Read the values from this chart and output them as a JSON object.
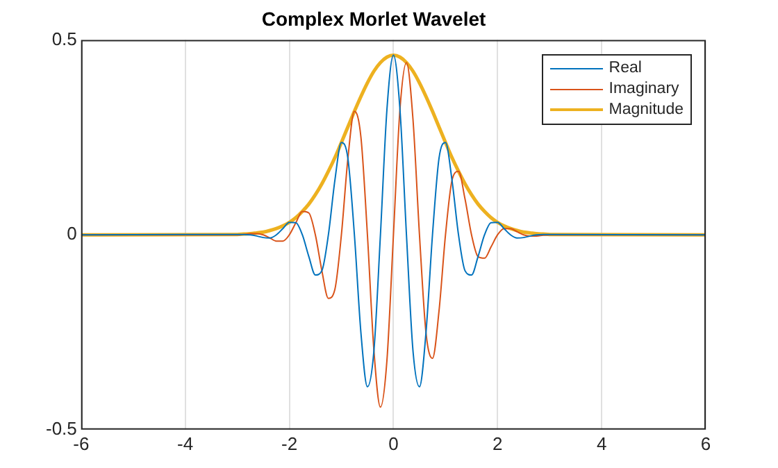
{
  "chart_data": {
    "type": "line",
    "title": "Complex Morlet Wavelet",
    "x": [
      -6,
      -3,
      -2.875,
      -2.75,
      -2.625,
      -2.5,
      -2.375,
      -2.25,
      -2.125,
      -2,
      -1.875,
      -1.75,
      -1.625,
      -1.5,
      -1.375,
      -1.25,
      -1.125,
      -1,
      -0.875,
      -0.75,
      -0.625,
      -0.5,
      -0.375,
      -0.25,
      -0.125,
      0,
      0.125,
      0.25,
      0.375,
      0.5,
      0.625,
      0.75,
      0.875,
      1,
      1.125,
      1.25,
      1.375,
      1.5,
      1.625,
      1.75,
      1.875,
      2,
      2.125,
      2.25,
      2.375,
      2.5,
      2.625,
      2.75,
      2.875,
      3,
      6
    ],
    "series": [
      {
        "name": "Real",
        "color": "#0072bd",
        "values": [
          0,
          0.001,
          0.001,
          0,
          -0.003,
          -0.007,
          -0.008,
          0,
          0.016,
          0.032,
          0.031,
          0,
          -0.056,
          -0.103,
          -0.092,
          0,
          0.14,
          0.237,
          0.196,
          0,
          -0.251,
          -0.39,
          -0.297,
          0,
          0.322,
          0.461,
          0.322,
          0,
          -0.297,
          -0.39,
          -0.251,
          0,
          0.196,
          0.237,
          0.14,
          0,
          -0.092,
          -0.103,
          -0.056,
          0,
          0.031,
          0.032,
          0.016,
          0,
          -0.008,
          -0.007,
          -0.003,
          0,
          0.001,
          0.001,
          0
        ]
      },
      {
        "name": "Imaginary",
        "color": "#d95319",
        "values": [
          0,
          0,
          0.001,
          0.003,
          0.003,
          0,
          -0.008,
          -0.016,
          -0.016,
          0,
          0.031,
          0.06,
          0.056,
          0,
          -0.092,
          -0.163,
          -0.14,
          0,
          0.196,
          0.317,
          0.251,
          0,
          -0.297,
          -0.442,
          -0.322,
          0,
          0.322,
          0.442,
          0.297,
          0,
          -0.251,
          -0.317,
          -0.196,
          0,
          0.14,
          0.163,
          0.092,
          0,
          -0.056,
          -0.06,
          -0.031,
          0,
          0.016,
          0.016,
          0.008,
          0,
          -0.003,
          -0.003,
          -0.001,
          0,
          0
        ]
      },
      {
        "name": "Magnitude",
        "color": "#edb120",
        "values": [
          0,
          0.001,
          0.002,
          0.003,
          0.005,
          0.007,
          0.011,
          0.016,
          0.023,
          0.032,
          0.044,
          0.06,
          0.079,
          0.103,
          0.131,
          0.163,
          0.198,
          0.237,
          0.277,
          0.317,
          0.355,
          0.39,
          0.42,
          0.442,
          0.456,
          0.461,
          0.456,
          0.442,
          0.42,
          0.39,
          0.355,
          0.317,
          0.277,
          0.237,
          0.198,
          0.163,
          0.131,
          0.103,
          0.079,
          0.06,
          0.044,
          0.032,
          0.023,
          0.016,
          0.011,
          0.007,
          0.005,
          0.003,
          0.002,
          0.001,
          0
        ]
      }
    ],
    "xlim": [
      -6,
      6
    ],
    "xticks": [
      -6,
      -4,
      -2,
      0,
      2,
      4,
      6
    ],
    "ylim": [
      -0.5,
      0.5
    ],
    "yticks": [
      -0.5,
      0,
      0.5
    ],
    "grid": "x",
    "legend": "top right",
    "marker": "none",
    "line_style": "solid"
  }
}
